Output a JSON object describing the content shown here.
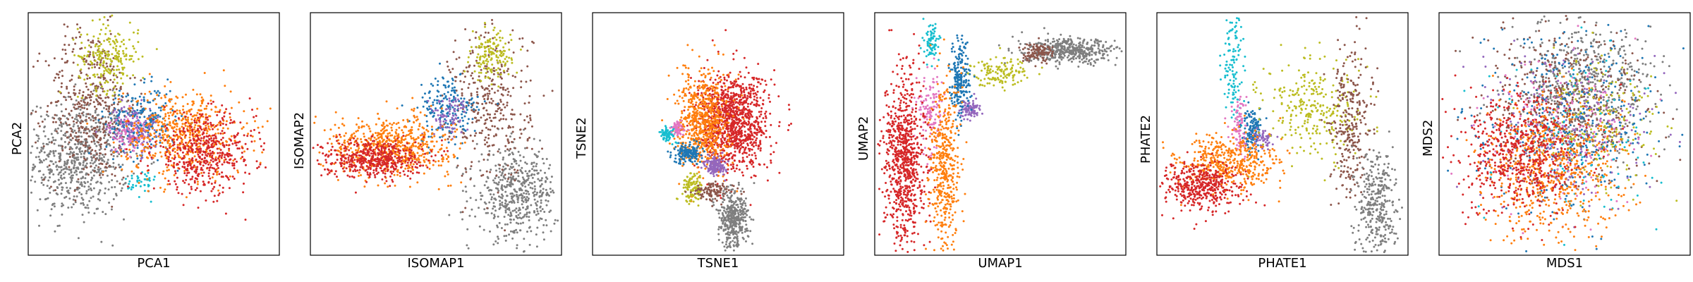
{
  "palette": [
    "#1f77b4",
    "#ff7f0e",
    "#d62728",
    "#9467bd",
    "#8c564b",
    "#e377c2",
    "#7f7f7f",
    "#bcbd22",
    "#17becf"
  ],
  "chart_data": [
    {
      "type": "scatter",
      "xlabel": "PCA1",
      "ylabel": "PCA2",
      "xticks": [],
      "yticks": [],
      "xlim": [
        0,
        100
      ],
      "ylim": [
        0,
        100
      ],
      "series": [
        {
          "color": "#7f7f7f",
          "points": 700,
          "clusters": [
            [
              20,
              40,
              10,
              12
            ]
          ]
        },
        {
          "color": "#8c564b",
          "points": 450,
          "clusters": [
            [
              25,
              62,
              9,
              16
            ]
          ]
        },
        {
          "color": "#bcbd22",
          "points": 220,
          "clusters": [
            [
              32,
              82,
              6,
              7
            ]
          ]
        },
        {
          "color": "#1f77b4",
          "points": 250,
          "clusters": [
            [
              45,
              55,
              7,
              7
            ]
          ]
        },
        {
          "color": "#9467bd",
          "points": 150,
          "clusters": [
            [
              42,
              52,
              5,
              5
            ]
          ]
        },
        {
          "color": "#e377c2",
          "points": 80,
          "clusters": [
            [
              40,
              50,
              4,
              4
            ]
          ]
        },
        {
          "color": "#17becf",
          "points": 40,
          "clusters": [
            [
              45,
              30,
              3,
              3
            ]
          ]
        },
        {
          "color": "#ff7f0e",
          "points": 550,
          "clusters": [
            [
              62,
              50,
              12,
              9
            ]
          ]
        },
        {
          "color": "#d62728",
          "points": 500,
          "clusters": [
            [
              70,
              42,
              10,
              8
            ]
          ]
        }
      ]
    },
    {
      "type": "scatter",
      "xlabel": "ISOMAP1",
      "ylabel": "ISOMAP2",
      "xticks": [],
      "yticks": [],
      "xlim": [
        0,
        100
      ],
      "ylim": [
        0,
        100
      ],
      "series": [
        {
          "color": "#7f7f7f",
          "points": 500,
          "clusters": [
            [
              82,
              25,
              8,
              9
            ]
          ]
        },
        {
          "color": "#8c564b",
          "points": 350,
          "clusters": [
            [
              72,
              62,
              8,
              16
            ]
          ]
        },
        {
          "color": "#bcbd22",
          "points": 150,
          "clusters": [
            [
              72,
              82,
              4,
              5
            ]
          ]
        },
        {
          "color": "#1f77b4",
          "points": 200,
          "clusters": [
            [
              55,
              60,
              6,
              7
            ]
          ]
        },
        {
          "color": "#9467bd",
          "points": 80,
          "clusters": [
            [
              55,
              58,
              4,
              4
            ]
          ]
        },
        {
          "color": "#ff7f0e",
          "points": 600,
          "clusters": [
            [
              32,
              45,
              12,
              6
            ]
          ]
        },
        {
          "color": "#d62728",
          "points": 500,
          "clusters": [
            [
              25,
              40,
              10,
              4
            ]
          ]
        }
      ]
    },
    {
      "type": "scatter",
      "xlabel": "TSNE1",
      "ylabel": "TSNE2",
      "xticks": [],
      "yticks": [],
      "xlim": [
        0,
        100
      ],
      "ylim": [
        0,
        100
      ],
      "series": [
        {
          "color": "#d62728",
          "points": 1100,
          "clusters": [
            [
              56,
              55,
              7,
              10
            ]
          ]
        },
        {
          "color": "#ff7f0e",
          "points": 650,
          "clusters": [
            [
              44,
              55,
              5,
              10
            ]
          ]
        },
        {
          "color": "#9467bd",
          "points": 140,
          "clusters": [
            [
              49,
              37,
              2,
              2
            ]
          ]
        },
        {
          "color": "#1f77b4",
          "points": 160,
          "clusters": [
            [
              38,
              42,
              3,
              2
            ]
          ]
        },
        {
          "color": "#17becf",
          "points": 70,
          "clusters": [
            [
              30,
              50,
              1.5,
              1.5
            ]
          ]
        },
        {
          "color": "#e377c2",
          "points": 60,
          "clusters": [
            [
              34,
              52,
              1.5,
              1.5
            ]
          ]
        },
        {
          "color": "#bcbd22",
          "points": 110,
          "clusters": [
            [
              40,
              28,
              2,
              3
            ]
          ]
        },
        {
          "color": "#8c564b",
          "points": 110,
          "clusters": [
            [
              48,
              26,
              4,
              2
            ]
          ]
        },
        {
          "color": "#7f7f7f",
          "points": 380,
          "clusters": [
            [
              56,
              15,
              3,
              6
            ]
          ]
        }
      ]
    },
    {
      "type": "scatter",
      "xlabel": "UMAP1",
      "ylabel": "UMAP2",
      "xticks": [],
      "yticks": [],
      "xlim": [
        0,
        100
      ],
      "ylim": [
        0,
        100
      ],
      "series": [
        {
          "color": "#7f7f7f",
          "points": 450,
          "clusters": [
            [
              78,
              84,
              9,
              2.5
            ]
          ]
        },
        {
          "color": "#8c564b",
          "points": 110,
          "clusters": [
            [
              65,
              84,
              3,
              2
            ]
          ]
        },
        {
          "color": "#bcbd22",
          "points": 130,
          "clusters": [
            [
              50,
              76,
              6,
              3
            ]
          ]
        },
        {
          "color": "#9467bd",
          "points": 90,
          "clusters": [
            [
              38,
              60,
              2,
              2
            ]
          ]
        },
        {
          "color": "#1f77b4",
          "points": 220,
          "clusters": [
            [
              34,
              72,
              2,
              8
            ]
          ]
        },
        {
          "color": "#e377c2",
          "points": 130,
          "clusters": [
            [
              22,
              60,
              2.5,
              8
            ]
          ]
        },
        {
          "color": "#17becf",
          "points": 80,
          "clusters": [
            [
              23,
              88,
              1.5,
              4
            ]
          ]
        },
        {
          "color": "#d62728",
          "points": 800,
          "clusters": [
            [
              12,
              40,
              4,
              18
            ]
          ]
        },
        {
          "color": "#ff7f0e",
          "points": 450,
          "clusters": [
            [
              28,
              35,
              3,
              18
            ]
          ]
        }
      ]
    },
    {
      "type": "scatter",
      "xlabel": "PHATE1",
      "ylabel": "PHATE2",
      "xticks": [],
      "yticks": [],
      "xlim": [
        0,
        100
      ],
      "ylim": [
        0,
        100
      ],
      "series": [
        {
          "color": "#17becf",
          "points": 120,
          "clusters": [
            [
              30,
              80,
              2,
              12
            ]
          ]
        },
        {
          "color": "#e377c2",
          "points": 90,
          "clusters": [
            [
              33,
              52,
              2,
              6
            ]
          ]
        },
        {
          "color": "#1f77b4",
          "points": 120,
          "clusters": [
            [
              38,
              52,
              2,
              4
            ]
          ]
        },
        {
          "color": "#9467bd",
          "points": 60,
          "clusters": [
            [
              42,
              48,
              2,
              2
            ]
          ]
        },
        {
          "color": "#bcbd22",
          "points": 280,
          "clusters": [
            [
              62,
              60,
              10,
              10
            ]
          ]
        },
        {
          "color": "#8c564b",
          "points": 280,
          "clusters": [
            [
              77,
              55,
              4,
              16
            ]
          ]
        },
        {
          "color": "#7f7f7f",
          "points": 350,
          "clusters": [
            [
              88,
              20,
              4,
              12
            ]
          ]
        },
        {
          "color": "#ff7f0e",
          "points": 450,
          "clusters": [
            [
              28,
              38,
              10,
              6
            ]
          ]
        },
        {
          "color": "#d62728",
          "points": 450,
          "clusters": [
            [
              18,
              28,
              8,
              5
            ]
          ]
        }
      ]
    },
    {
      "type": "scatter",
      "xlabel": "MDS1",
      "ylabel": "MDS2",
      "xticks": [],
      "yticks": [],
      "xlim": [
        0,
        100
      ],
      "ylim": [
        0,
        100
      ],
      "series": [
        {
          "color": "#7f7f7f",
          "points": 550,
          "clusters": [
            [
              58,
              70,
              14,
              14
            ]
          ]
        },
        {
          "color": "#8c564b",
          "points": 450,
          "clusters": [
            [
              52,
              62,
              16,
              16
            ]
          ]
        },
        {
          "color": "#bcbd22",
          "points": 200,
          "clusters": [
            [
              65,
              55,
              12,
              12
            ]
          ]
        },
        {
          "color": "#1f77b4",
          "points": 350,
          "clusters": [
            [
              50,
              55,
              18,
              18
            ]
          ]
        },
        {
          "color": "#9467bd",
          "points": 200,
          "clusters": [
            [
              50,
              52,
              16,
              16
            ]
          ]
        },
        {
          "color": "#e377c2",
          "points": 150,
          "clusters": [
            [
              48,
              50,
              16,
              16
            ]
          ]
        },
        {
          "color": "#17becf",
          "points": 100,
          "clusters": [
            [
              55,
              48,
              18,
              18
            ]
          ]
        },
        {
          "color": "#ff7f0e",
          "points": 600,
          "clusters": [
            [
              45,
              35,
              14,
              14
            ]
          ]
        },
        {
          "color": "#d62728",
          "points": 600,
          "clusters": [
            [
              32,
              42,
              12,
              12
            ]
          ]
        }
      ]
    }
  ]
}
